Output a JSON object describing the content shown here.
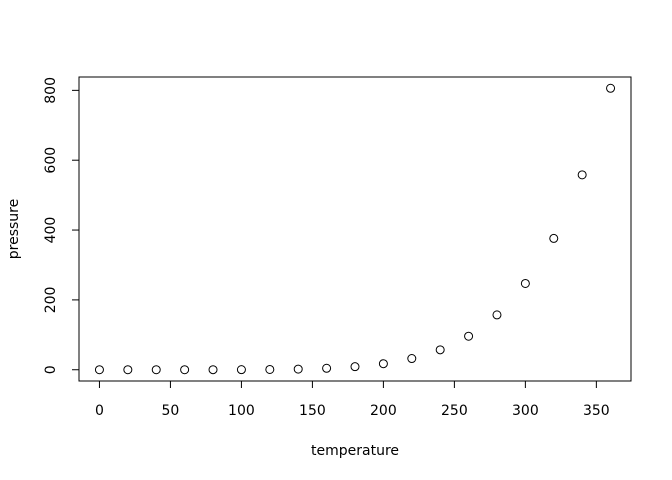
{
  "chart_data": {
    "type": "scatter",
    "title": "",
    "xlabel": "temperature",
    "ylabel": "pressure",
    "x": [
      0,
      20,
      40,
      60,
      80,
      100,
      120,
      140,
      160,
      180,
      200,
      220,
      240,
      260,
      280,
      300,
      320,
      340,
      360
    ],
    "y": [
      0.0002,
      0.0012,
      0.006,
      0.03,
      0.09,
      0.27,
      0.75,
      1.85,
      4.2,
      8.8,
      17.3,
      32.1,
      57,
      96,
      157,
      247,
      376,
      558,
      806
    ],
    "xlim": [
      -14.4,
      374.4
    ],
    "ylim": [
      -32.24,
      838.24
    ],
    "xticks": [
      0,
      50,
      100,
      150,
      200,
      250,
      300,
      350
    ],
    "yticks": [
      0,
      200,
      400,
      600,
      800
    ],
    "xtick_labels": [
      "0",
      "50",
      "100",
      "150",
      "200",
      "250",
      "300",
      "350"
    ],
    "ytick_labels": [
      "0",
      "200",
      "400",
      "600",
      "800"
    ],
    "marker": "open-circle",
    "grid": false,
    "color": "#000000"
  }
}
